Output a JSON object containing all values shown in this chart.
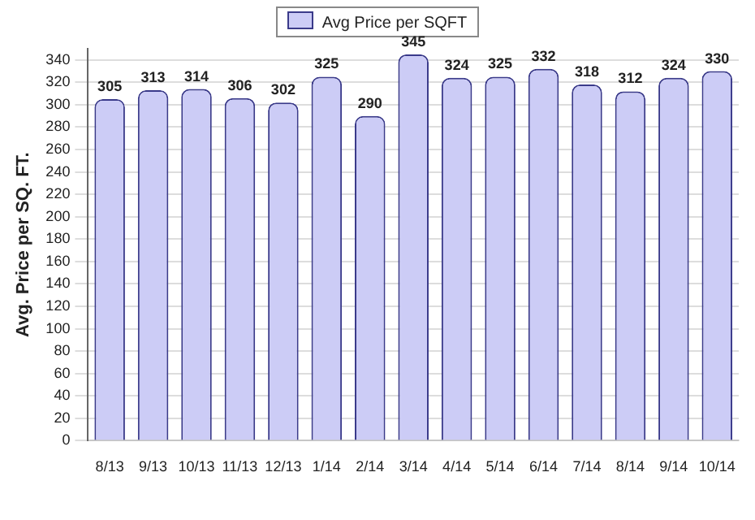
{
  "chart_data": {
    "type": "bar",
    "ylabel": "Avg. Price per SQ. FT.",
    "categories": [
      "8/13",
      "9/13",
      "10/13",
      "11/13",
      "12/13",
      "1/14",
      "2/14",
      "3/14",
      "4/14",
      "5/14",
      "6/14",
      "7/14",
      "8/14",
      "9/14",
      "10/14"
    ],
    "series": [
      {
        "name": "Avg Price per SQFT",
        "color": "#ccccf6",
        "values": [
          305,
          313,
          314,
          306,
          302,
          325,
          290,
          345,
          324,
          325,
          332,
          318,
          312,
          324,
          330
        ]
      }
    ],
    "ylim": [
      0,
      350
    ],
    "yticks": [
      0,
      20,
      40,
      60,
      80,
      100,
      120,
      140,
      160,
      180,
      200,
      220,
      240,
      260,
      280,
      300,
      320,
      340
    ],
    "grid": "y",
    "legend": "top",
    "data_labels": true
  }
}
